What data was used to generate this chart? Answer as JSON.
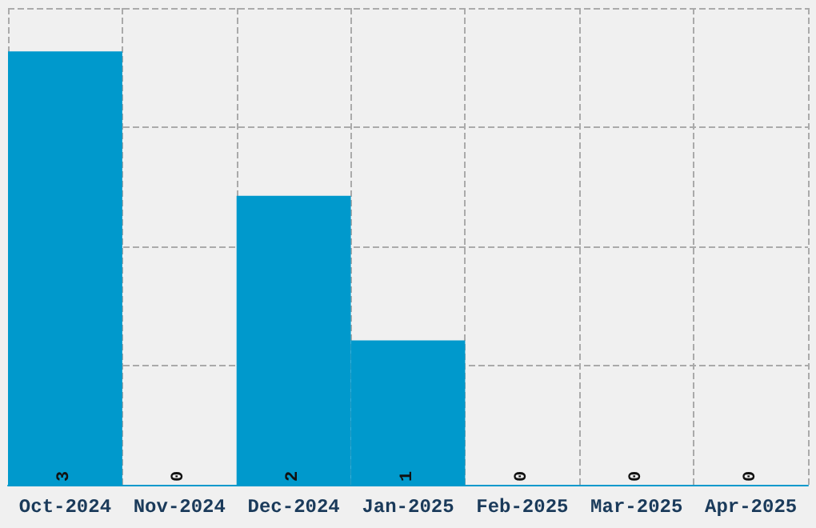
{
  "chart_data": {
    "type": "bar",
    "categories": [
      "Oct-2024",
      "Nov-2024",
      "Dec-2024",
      "Jan-2025",
      "Feb-2025",
      "Mar-2025",
      "Apr-2025"
    ],
    "values": [
      3,
      0,
      2,
      1,
      0,
      0,
      0
    ],
    "color": "#0099cc",
    "data_labels": true,
    "ylim": [
      0,
      3.3
    ],
    "yticks": [
      {
        "value": 0,
        "label": null
      },
      {
        "value": 0.825,
        "label": null
      },
      {
        "value": 1.65,
        "label": null
      },
      {
        "value": 2.475,
        "label": null
      },
      {
        "value": 3.3,
        "label": null
      }
    ],
    "grid": true,
    "tick_labels": "x"
  }
}
